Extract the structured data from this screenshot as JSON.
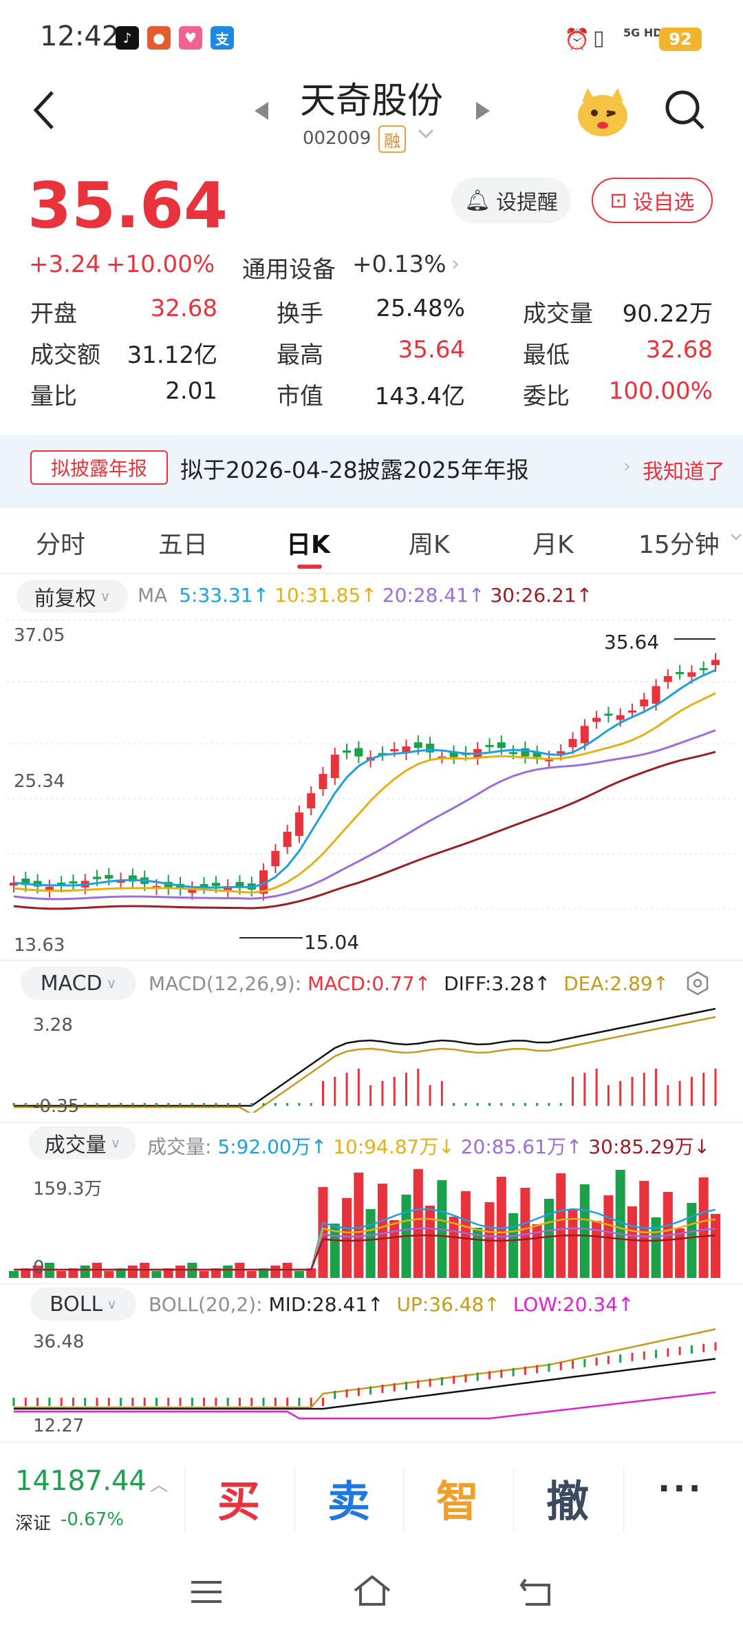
{
  "status_bar": {
    "time": "12:42",
    "battery": "92",
    "network": "5G HD"
  },
  "header": {
    "title": "天奇股份",
    "code": "002009",
    "margin_badge": "融"
  },
  "quote": {
    "price": "35.64",
    "change": "+3.24",
    "change_pct": "+10.00%",
    "sector": "通用设备",
    "sector_pct": "+0.13%",
    "remind_label": "设提醒",
    "favorite_label": "设自选",
    "stats": [
      [
        {
          "label": "开盘",
          "value": "32.68",
          "color": "red"
        },
        {
          "label": "换手",
          "value": "25.48%",
          "color": "dark"
        },
        {
          "label": "成交量",
          "value": "90.22万",
          "color": "dark"
        }
      ],
      [
        {
          "label": "成交额",
          "value": "31.12亿",
          "color": "dark"
        },
        {
          "label": "最高",
          "value": "35.64",
          "color": "red"
        },
        {
          "label": "最低",
          "value": "32.68",
          "color": "red"
        }
      ],
      [
        {
          "label": "量比",
          "value": "2.01",
          "color": "dark"
        },
        {
          "label": "市值",
          "value": "143.4亿",
          "color": "dark"
        },
        {
          "label": "委比",
          "value": "100.00%",
          "color": "red"
        }
      ]
    ]
  },
  "notice": {
    "tag": "拟披露年报",
    "text": "拟于2026-04-28披露2025年年报",
    "action": "我知道了"
  },
  "tabs": [
    "分时",
    "五日",
    "日K",
    "周K",
    "月K",
    "15分钟"
  ],
  "active_tab": "日K",
  "kline": {
    "adjust": "前复权",
    "ma_label": "MA",
    "ma": [
      {
        "text": "5:33.31↑",
        "color": "#1e9fe0"
      },
      {
        "text": "10:31.85↑",
        "color": "#e6b012"
      },
      {
        "text": "20:28.41↑",
        "color": "#9a6ce0"
      },
      {
        "text": "30:26.21↑",
        "color": "#9b1c22"
      }
    ],
    "y_top": "37.05",
    "y_mid": "25.34",
    "y_bottom": "13.63",
    "high_mark": "35.64",
    "low_mark": "15.04"
  },
  "macd": {
    "selector": "MACD",
    "params": "MACD(12,26,9):",
    "macd": "MACD:0.77↑",
    "diff": "DIFF:3.28↑",
    "dea": "DEA:2.89↑",
    "y_top": "3.28",
    "y_bottom": "-0.35"
  },
  "volume": {
    "selector": "成交量",
    "label": "成交量:",
    "ma5": "5:92.00万↑",
    "ma10": "10:94.87万↓",
    "ma20": "20:85.61万↑",
    "ma30": "30:85.29万↓",
    "y_top": "159.3万",
    "y_bottom": "0"
  },
  "boll": {
    "selector": "BOLL",
    "params": "BOLL(20,2):",
    "mid": "MID:28.41↑",
    "up": "UP:36.48↑",
    "low": "LOW:20.34↑",
    "y_top": "36.48",
    "y_bottom": "12.27"
  },
  "index": {
    "value": "14187.44",
    "name": "深证",
    "pct": "-0.67%"
  },
  "actions": {
    "buy": "买",
    "sell": "卖",
    "smart": "智",
    "cancel": "撤",
    "more": "···"
  },
  "colors": {
    "up": "#e8323c",
    "down": "#1aa14a",
    "ma5": "#1e9fe0",
    "ma10": "#e6b012",
    "ma20": "#9a6ce0",
    "ma30": "#9b1c22"
  }
}
